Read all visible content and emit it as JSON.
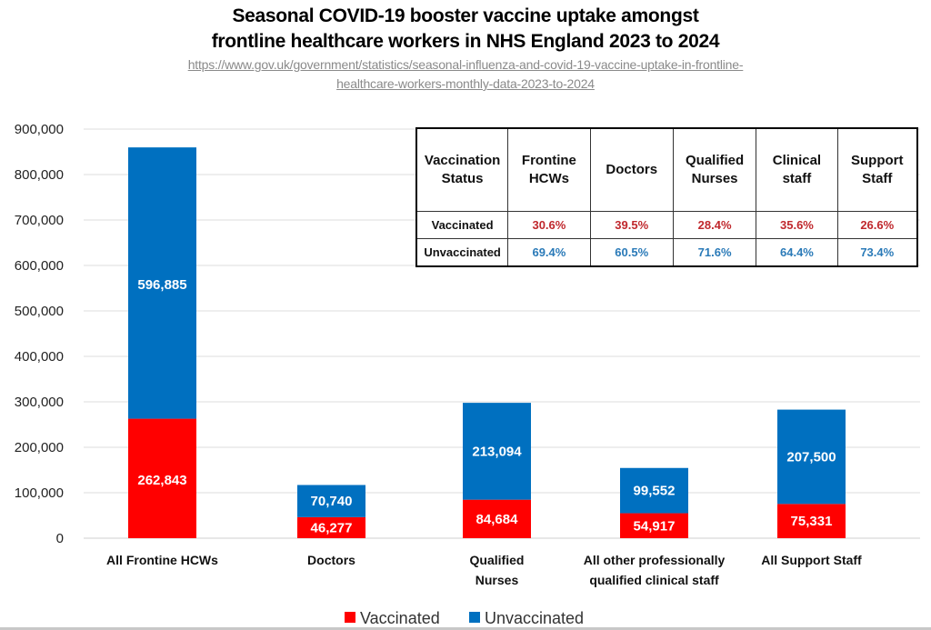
{
  "title": {
    "line1": "Seasonal COVID-19 booster vaccine uptake amongst",
    "line2": "frontline healthcare workers in NHS England 2023 to 2024"
  },
  "source": {
    "line1": "https://www.gov.uk/government/statistics/seasonal-influenza-and-covid-19-vaccine-uptake-in-frontline-",
    "line2": "healthcare-workers-monthly-data-2023-to-2024"
  },
  "colors": {
    "vaccinated": "#ff0000",
    "unvaccinated": "#0070c0",
    "table_vaccinated_text": "#c0282d",
    "table_unvaccinated_text": "#2a7ab8"
  },
  "chart_data": {
    "type": "bar",
    "stacked": true,
    "title": "Seasonal COVID-19 booster vaccine uptake amongst frontline healthcare workers in NHS England 2023 to 2024",
    "xlabel": "",
    "ylabel": "",
    "ylim": [
      0,
      900000
    ],
    "yticks": [
      0,
      100000,
      200000,
      300000,
      400000,
      500000,
      600000,
      700000,
      800000,
      900000
    ],
    "ytick_labels": [
      "0",
      "100,000",
      "200,000",
      "300,000",
      "400,000",
      "500,000",
      "600,000",
      "700,000",
      "800,000",
      "900,000"
    ],
    "grid": true,
    "legend_position": "bottom-center",
    "categories": [
      [
        "All Frontine HCWs"
      ],
      [
        "Doctors"
      ],
      [
        "Qualified",
        "Nurses"
      ],
      [
        "All other professionally",
        "qualified clinical staff"
      ],
      [
        "All Support Staff"
      ]
    ],
    "series": [
      {
        "name": "Vaccinated",
        "color": "#ff0000",
        "values": [
          262843,
          46277,
          84684,
          54917,
          75331
        ],
        "labels": [
          "262,843",
          "46,277",
          "84,684",
          "54,917",
          "75,331"
        ]
      },
      {
        "name": "Unvaccinated",
        "color": "#0070c0",
        "values": [
          596885,
          70740,
          213094,
          99552,
          207500
        ],
        "labels": [
          "596,885",
          "70,740",
          "213,094",
          "99,552",
          "207,500"
        ]
      }
    ]
  },
  "inset_table": {
    "headers": [
      [
        "Vaccination",
        "Status"
      ],
      [
        "Frontine",
        "HCWs"
      ],
      [
        "Doctors"
      ],
      [
        "Qualified",
        "Nurses"
      ],
      [
        "Clinical",
        "staff"
      ],
      [
        "Support",
        "Staff"
      ]
    ],
    "rows": [
      {
        "label": "Vaccinated",
        "values": [
          "30.6%",
          "39.5%",
          "28.4%",
          "35.6%",
          "26.6%"
        ]
      },
      {
        "label": "Unvaccinated",
        "values": [
          "69.4%",
          "60.5%",
          "71.6%",
          "64.4%",
          "73.4%"
        ]
      }
    ]
  }
}
